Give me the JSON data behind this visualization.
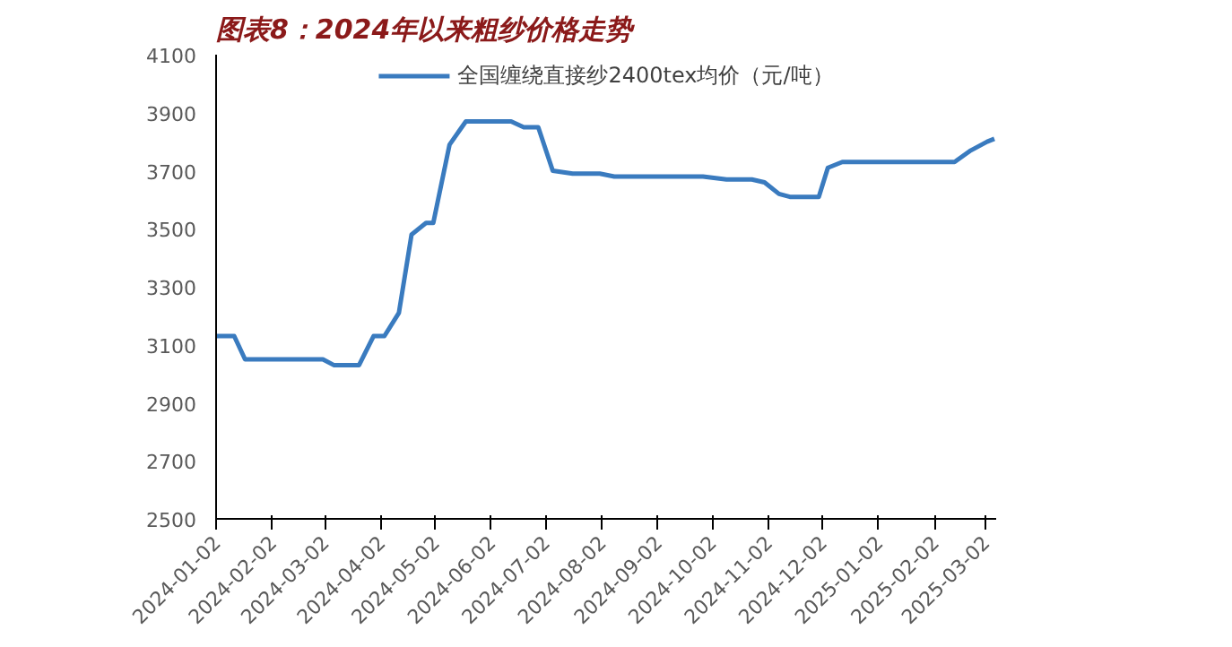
{
  "chart_data": {
    "type": "line",
    "title": "图表8：2024年以来粗纱价格走势",
    "x": [
      "2024-01-02",
      "2024-01-12",
      "2024-01-18",
      "2024-03-01",
      "2024-03-07",
      "2024-03-21",
      "2024-03-29",
      "2024-04-04",
      "2024-04-12",
      "2024-04-19",
      "2024-04-27",
      "2024-05-01",
      "2024-05-10",
      "2024-05-19",
      "2024-06-13",
      "2024-06-20",
      "2024-06-28",
      "2024-07-06",
      "2024-07-17",
      "2024-08-01",
      "2024-08-09",
      "2024-09-27",
      "2024-10-10",
      "2024-10-24",
      "2024-10-31",
      "2024-11-08",
      "2024-11-14",
      "2024-11-30",
      "2024-12-05",
      "2024-12-13",
      "2025-02-13",
      "2025-02-22",
      "2025-03-03",
      "2025-03-07"
    ],
    "series": [
      {
        "name": "全国缠绕直接纱2400tex均价（元/吨）",
        "color": "#3a7bbf",
        "values": [
          3130,
          3130,
          3050,
          3050,
          3030,
          3030,
          3130,
          3130,
          3210,
          3480,
          3520,
          3520,
          3790,
          3870,
          3870,
          3850,
          3850,
          3700,
          3690,
          3690,
          3680,
          3680,
          3670,
          3670,
          3660,
          3620,
          3610,
          3610,
          3710,
          3730,
          3730,
          3770,
          3800,
          3810
        ]
      }
    ],
    "xlim": [
      "2024-01-02",
      "2025-03-08"
    ],
    "xticks": [
      "2024-01-02",
      "2024-02-02",
      "2024-03-02",
      "2024-04-02",
      "2024-05-02",
      "2024-06-02",
      "2024-07-02",
      "2024-08-02",
      "2024-09-02",
      "2024-10-02",
      "2024-11-02",
      "2024-12-02",
      "2025-01-02",
      "2025-02-02",
      "2025-03-02"
    ],
    "ylim": [
      2500,
      4100
    ],
    "yticks": [
      2500,
      2700,
      2900,
      3100,
      3300,
      3500,
      3700,
      3900,
      4100
    ],
    "grid": false,
    "legend": "top",
    "marker": "none",
    "line_style": "solid"
  }
}
